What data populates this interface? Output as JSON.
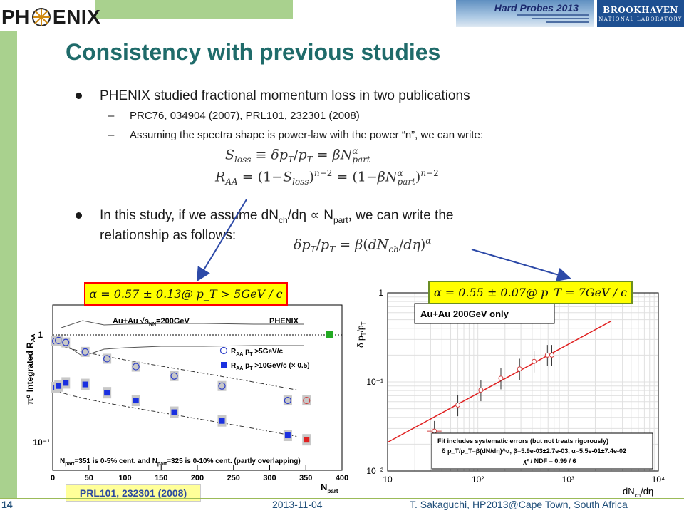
{
  "header": {
    "logo_text_left": "PH",
    "logo_text_right": "ENIX",
    "banner_title": "Hard Probes 2013",
    "lab_name_1": "BROOKHAVEN",
    "lab_name_2": "NATIONAL LABORATORY"
  },
  "title": "Consistency with previous studies",
  "bullets": [
    {
      "text": "PHENIX studied fractional momentum loss in two publications"
    },
    {
      "text": "In this study, if we assume dN",
      "sub1": "ch",
      "mid": "/dη  ∝ N",
      "sub2": "part",
      "tail": ", we can write the",
      "line2": "relationship as follows:"
    }
  ],
  "subbullets": [
    "PRC76, 034904 (2007), PRL101, 232301 (2008)",
    "Assuming the spectra shape is power-law with the power “n”, we can write:"
  ],
  "alpha_left": "α = 0.57 ± 0.13@ p_T > 5GeV / c",
  "alpha_right": "α = 0.55 ± 0.07@ p_T = 7GeV / c",
  "plot_left": {
    "ylabel": "π⁰ Integrated R",
    "ylabel_sub": "AA",
    "xlabel": "N",
    "xlabel_sub": "part",
    "legend_title": "Au+Au √s",
    "legend_title_sub": "NN",
    "legend_title_tail": "=200GeV",
    "experiment": "PHENIX",
    "legend_1": "R",
    "legend_1_sub": "AA",
    "legend_1_tail": " p",
    "legend_1_sub2": "T",
    "legend_1_tail2": " >5GeV/c",
    "legend_2": "R",
    "legend_2_sub": "AA",
    "legend_2_tail": " p",
    "legend_2_sub2": "T",
    "legend_2_tail2": " >10GeV/c (× 0.5)",
    "note": "N",
    "note_sub": "part",
    "note_mid": "=351 is 0-5% cent. and N",
    "note_sub2": "part",
    "note_tail": "=325 is 0-10% cent. (partly overlapping)",
    "xticks": [
      "0",
      "50",
      "100",
      "150",
      "200",
      "250",
      "300",
      "350",
      "400"
    ],
    "yticks": [
      "1",
      "10⁻¹"
    ]
  },
  "plot_right": {
    "ylabel": "δ p",
    "ylabel_sub": "T",
    "ylabel_tail": "/p",
    "ylabel_sub2": "T",
    "xlabel": "dN",
    "xlabel_sub": "ch",
    "xlabel_tail": "/dη",
    "label": "Au+Au 200GeV only",
    "fit_line_1": "Fit includes systematic errors (but not treats rigorously)",
    "fit_line_2": "δ p_T/p_T=β(dN/dη)^α,  β=5.9e-03±2.7e-03,  α=5.5e-01±7.4e-02",
    "fit_line_3": "χ² / NDF = 0.99 / 6",
    "xticks": [
      "10",
      "10²",
      "10³",
      "10⁴"
    ],
    "yticks": [
      "1",
      "10⁻¹",
      "10⁻²"
    ]
  },
  "chart_data": [
    {
      "type": "scatter",
      "xlabel": "Npart",
      "ylabel": "π0 Integrated RAA",
      "xlim": [
        0,
        400
      ],
      "ylim": [
        0.06,
        1.6
      ],
      "yscale": "log",
      "series": [
        {
          "name": "RAA pT>5GeV/c",
          "marker": "open-circle",
          "color": "#2a3cc8",
          "points": [
            [
              4,
              0.78
            ],
            [
              8,
              0.79
            ],
            [
              18,
              0.76
            ],
            [
              45,
              0.63
            ],
            [
              75,
              0.55
            ],
            [
              115,
              0.47
            ],
            [
              168,
              0.39
            ],
            [
              234,
              0.32
            ],
            [
              325,
              0.24
            ],
            [
              351,
              0.24
            ]
          ]
        },
        {
          "name": "RAA pT>10GeV/c (× 0.5)",
          "marker": "filled-square",
          "color": "#1a30e0",
          "points": [
            [
              4,
              0.31
            ],
            [
              8,
              0.32
            ],
            [
              18,
              0.34
            ],
            [
              45,
              0.33
            ],
            [
              75,
              0.28
            ],
            [
              115,
              0.24
            ],
            [
              168,
              0.19
            ],
            [
              234,
              0.16
            ],
            [
              325,
              0.12
            ],
            [
              351,
              0.11
            ]
          ]
        }
      ]
    },
    {
      "type": "scatter",
      "xlabel": "dNch/dη",
      "ylabel": "δ pT/pT",
      "xlim": [
        10,
        10000
      ],
      "ylim": [
        0.01,
        1
      ],
      "xscale": "log",
      "yscale": "log",
      "series": [
        {
          "name": "data",
          "points": [
            [
              33,
              0.028
            ],
            [
              60,
              0.055
            ],
            [
              108,
              0.081
            ],
            [
              180,
              0.11
            ],
            [
              290,
              0.14
            ],
            [
              420,
              0.17
            ],
            [
              590,
              0.2
            ],
            [
              660,
              0.2
            ]
          ]
        },
        {
          "name": "fit",
          "points": [
            [
              10,
              0.021
            ],
            [
              3000,
              0.482
            ]
          ]
        }
      ]
    }
  ],
  "caption": "PRL101, 232301 (2008)",
  "footer": {
    "page": "14",
    "date": "2013-11-04",
    "author": "T. Sakaguchi, HP2013@Cape Town, South Africa"
  }
}
